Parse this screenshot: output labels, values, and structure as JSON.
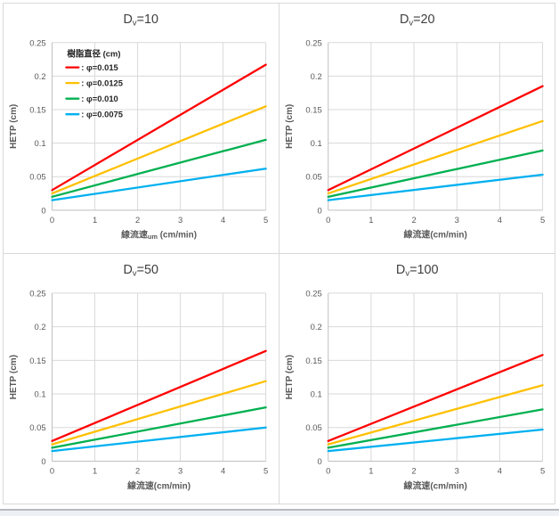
{
  "window": {
    "background": "#ffffff",
    "sheet_border": "#d9d9d9",
    "bottom_edge_color": "#b6b9be",
    "bottom_fill_color": "#edf0f5"
  },
  "palette": {
    "grid": "#d9d9d9",
    "axis": "#bfbfbf",
    "tick_text": "#595959",
    "title_text": "#404040",
    "label_text": "#595959",
    "legend_text": "#262626",
    "plot_background": "#ffffff"
  },
  "chart_data": [
    {
      "type": "line",
      "title": "Dv=10",
      "title_parts": {
        "base": "D",
        "sub": "v",
        "rest": "=10"
      },
      "xlabel": "線流速um (cm/min)",
      "xlabel_parts": [
        {
          "text": "線流速"
        },
        {
          "text": "um",
          "small": true
        },
        {
          "text": " (cm/min)"
        }
      ],
      "ylabel": "HETP (cm)",
      "xlim": [
        0,
        5
      ],
      "ylim": [
        0,
        0.25
      ],
      "xtick_labels": [
        "0",
        "1",
        "2",
        "3",
        "4",
        "5"
      ],
      "ytick_labels": [
        "0",
        "0.05",
        "0.1",
        "0.15",
        "0.2",
        "0.25"
      ],
      "grid": true,
      "legend": {
        "visible": true,
        "position": "upper-left",
        "title": "樹脂直径 (cm)",
        "items": [
          {
            "label": "φ=0.015",
            "color": "#FF0000"
          },
          {
            "label": "φ=0.0125",
            "color": "#FFC000"
          },
          {
            "label": "φ=0.010",
            "color": "#00B050"
          },
          {
            "label": "φ=0.0075",
            "color": "#00B0F0"
          }
        ]
      },
      "series": [
        {
          "name": "φ=0.015",
          "color": "#FF0000",
          "x": [
            0,
            5
          ],
          "y": [
            0.03,
            0.217
          ]
        },
        {
          "name": "φ=0.0125",
          "color": "#FFC000",
          "x": [
            0,
            5
          ],
          "y": [
            0.025,
            0.155
          ]
        },
        {
          "name": "φ=0.010",
          "color": "#00B050",
          "x": [
            0,
            5
          ],
          "y": [
            0.02,
            0.105
          ]
        },
        {
          "name": "φ=0.0075",
          "color": "#00B0F0",
          "x": [
            0,
            5
          ],
          "y": [
            0.015,
            0.062
          ]
        }
      ]
    },
    {
      "type": "line",
      "title": "Dv=20",
      "title_parts": {
        "base": "D",
        "sub": "v",
        "rest": "=20"
      },
      "xlabel": "線流速(cm/min)",
      "xlabel_parts": [
        {
          "text": "線流速(cm/min)"
        }
      ],
      "ylabel": "HETP (cm)",
      "xlim": [
        0,
        5
      ],
      "ylim": [
        0,
        0.25
      ],
      "xtick_labels": [
        "0",
        "1",
        "2",
        "3",
        "4",
        "5"
      ],
      "ytick_labels": [
        "0",
        "0.05",
        "0.1",
        "0.15",
        "0.2",
        "0.25"
      ],
      "grid": true,
      "legend": {
        "visible": false
      },
      "series": [
        {
          "name": "φ=0.015",
          "color": "#FF0000",
          "x": [
            0,
            5
          ],
          "y": [
            0.03,
            0.185
          ]
        },
        {
          "name": "φ=0.0125",
          "color": "#FFC000",
          "x": [
            0,
            5
          ],
          "y": [
            0.025,
            0.133
          ]
        },
        {
          "name": "φ=0.010",
          "color": "#00B050",
          "x": [
            0,
            5
          ],
          "y": [
            0.02,
            0.089
          ]
        },
        {
          "name": "φ=0.0075",
          "color": "#00B0F0",
          "x": [
            0,
            5
          ],
          "y": [
            0.015,
            0.053
          ]
        }
      ]
    },
    {
      "type": "line",
      "title": "Dv=50",
      "title_parts": {
        "base": "D",
        "sub": "v",
        "rest": "=50"
      },
      "xlabel": "線流速(cm/min)",
      "xlabel_parts": [
        {
          "text": "線流速(cm/min)"
        }
      ],
      "ylabel": "HETP (cm)",
      "xlim": [
        0,
        5
      ],
      "ylim": [
        0,
        0.25
      ],
      "xtick_labels": [
        "0",
        "1",
        "2",
        "3",
        "4",
        "5"
      ],
      "ytick_labels": [
        "0",
        "0.05",
        "0.1",
        "0.15",
        "0.2",
        "0.25"
      ],
      "grid": true,
      "legend": {
        "visible": false
      },
      "series": [
        {
          "name": "φ=0.015",
          "color": "#FF0000",
          "x": [
            0,
            5
          ],
          "y": [
            0.03,
            0.164
          ]
        },
        {
          "name": "φ=0.0125",
          "color": "#FFC000",
          "x": [
            0,
            5
          ],
          "y": [
            0.025,
            0.119
          ]
        },
        {
          "name": "φ=0.010",
          "color": "#00B050",
          "x": [
            0,
            5
          ],
          "y": [
            0.02,
            0.08
          ]
        },
        {
          "name": "φ=0.0075",
          "color": "#00B0F0",
          "x": [
            0,
            5
          ],
          "y": [
            0.015,
            0.05
          ]
        }
      ]
    },
    {
      "type": "line",
      "title": "Dv=100",
      "title_parts": {
        "base": "D",
        "sub": "v",
        "rest": "=100"
      },
      "xlabel": "線流速(cm/min)",
      "xlabel_parts": [
        {
          "text": "線流速(cm/min)"
        }
      ],
      "ylabel": "HETP (cm)",
      "xlim": [
        0,
        5
      ],
      "ylim": [
        0,
        0.25
      ],
      "xtick_labels": [
        "0",
        "1",
        "2",
        "3",
        "4",
        "5"
      ],
      "ytick_labels": [
        "0",
        "0.05",
        "0.1",
        "0.15",
        "0.2",
        "0.25"
      ],
      "grid": true,
      "legend": {
        "visible": false
      },
      "series": [
        {
          "name": "φ=0.015",
          "color": "#FF0000",
          "x": [
            0,
            5
          ],
          "y": [
            0.03,
            0.158
          ]
        },
        {
          "name": "φ=0.0125",
          "color": "#FFC000",
          "x": [
            0,
            5
          ],
          "y": [
            0.025,
            0.113
          ]
        },
        {
          "name": "φ=0.010",
          "color": "#00B050",
          "x": [
            0,
            5
          ],
          "y": [
            0.02,
            0.077
          ]
        },
        {
          "name": "φ=0.0075",
          "color": "#00B0F0",
          "x": [
            0,
            5
          ],
          "y": [
            0.015,
            0.047
          ]
        }
      ]
    }
  ]
}
